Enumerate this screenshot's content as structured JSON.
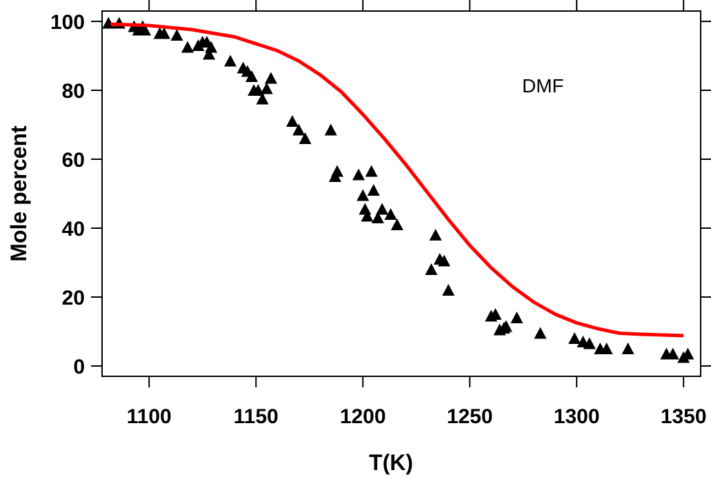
{
  "chart_data": {
    "type": "scatter",
    "title": "",
    "xlabel": "T(K)",
    "ylabel": "Mole percent",
    "annotation": "DMF",
    "xlim": [
      1078,
      1358
    ],
    "ylim": [
      -3,
      103
    ],
    "x_ticks": [
      1100,
      1150,
      1200,
      1250,
      1300,
      1350
    ],
    "y_ticks": [
      0,
      20,
      40,
      60,
      80,
      100
    ],
    "grid": false,
    "series": [
      {
        "kind": "scatter",
        "marker": "triangle",
        "color": "#000000",
        "points": [
          [
            1081,
            99.5
          ],
          [
            1086,
            99.5
          ],
          [
            1093,
            98.5
          ],
          [
            1095,
            97.5
          ],
          [
            1097,
            98.5
          ],
          [
            1098,
            97.5
          ],
          [
            1105,
            96.5
          ],
          [
            1107,
            96.5
          ],
          [
            1113,
            96.0
          ],
          [
            1118,
            92.5
          ],
          [
            1123,
            93.0
          ],
          [
            1125,
            94.0
          ],
          [
            1127,
            94.0
          ],
          [
            1128,
            90.5
          ],
          [
            1129,
            92.5
          ],
          [
            1138,
            88.5
          ],
          [
            1144,
            86.5
          ],
          [
            1146,
            85.5
          ],
          [
            1148,
            84.0
          ],
          [
            1149,
            80.0
          ],
          [
            1151,
            80.0
          ],
          [
            1153,
            77.5
          ],
          [
            1155,
            80.5
          ],
          [
            1157,
            83.5
          ],
          [
            1167,
            71.0
          ],
          [
            1170,
            68.5
          ],
          [
            1173,
            66.0
          ],
          [
            1185,
            68.5
          ],
          [
            1187,
            55.0
          ],
          [
            1188,
            56.5
          ],
          [
            1198,
            55.5
          ],
          [
            1200,
            49.5
          ],
          [
            1201,
            45.5
          ],
          [
            1202,
            43.5
          ],
          [
            1204,
            56.5
          ],
          [
            1205,
            51.0
          ],
          [
            1207,
            43.0
          ],
          [
            1209,
            45.5
          ],
          [
            1213,
            44.0
          ],
          [
            1216,
            41.0
          ],
          [
            1232,
            28.0
          ],
          [
            1234,
            38.0
          ],
          [
            1236,
            31.0
          ],
          [
            1238,
            30.5
          ],
          [
            1240,
            22.0
          ],
          [
            1260,
            14.5
          ],
          [
            1262,
            15.0
          ],
          [
            1264,
            10.5
          ],
          [
            1266,
            11.0
          ],
          [
            1267,
            11.5
          ],
          [
            1272,
            14.0
          ],
          [
            1283,
            9.5
          ],
          [
            1299,
            8.0
          ],
          [
            1303,
            7.0
          ],
          [
            1306,
            6.5
          ],
          [
            1311,
            5.0
          ],
          [
            1314,
            5.0
          ],
          [
            1324,
            5.0
          ],
          [
            1342,
            3.5
          ],
          [
            1345,
            3.5
          ],
          [
            1350,
            2.5
          ],
          [
            1352,
            3.5
          ]
        ]
      },
      {
        "kind": "line",
        "color": "#ff0000",
        "points": [
          [
            1082,
            99.2
          ],
          [
            1100,
            98.8
          ],
          [
            1120,
            97.6
          ],
          [
            1140,
            95.5
          ],
          [
            1160,
            91.5
          ],
          [
            1170,
            88.5
          ],
          [
            1180,
            84.5
          ],
          [
            1190,
            79.5
          ],
          [
            1200,
            73.0
          ],
          [
            1210,
            66.0
          ],
          [
            1220,
            58.5
          ],
          [
            1230,
            50.5
          ],
          [
            1240,
            42.5
          ],
          [
            1250,
            35.0
          ],
          [
            1260,
            28.5
          ],
          [
            1270,
            23.0
          ],
          [
            1280,
            18.5
          ],
          [
            1290,
            15.0
          ],
          [
            1300,
            12.5
          ],
          [
            1310,
            10.8
          ],
          [
            1320,
            9.5
          ],
          [
            1330,
            9.2
          ],
          [
            1340,
            9.0
          ],
          [
            1350,
            8.8
          ]
        ]
      }
    ]
  }
}
